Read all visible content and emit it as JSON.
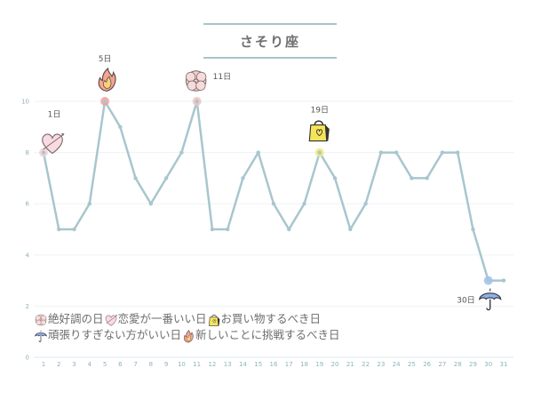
{
  "title": "さそり座",
  "chart_data": {
    "type": "line",
    "x": [
      1,
      2,
      3,
      4,
      5,
      6,
      7,
      8,
      9,
      10,
      11,
      12,
      13,
      14,
      15,
      16,
      17,
      18,
      19,
      20,
      21,
      22,
      23,
      24,
      25,
      26,
      27,
      28,
      29,
      30,
      31
    ],
    "values": [
      8,
      5,
      5,
      6,
      10,
      9,
      7,
      6,
      7,
      8,
      10,
      5,
      5,
      7,
      8,
      6,
      5,
      6,
      8,
      7,
      5,
      6,
      8,
      8,
      7,
      7,
      8,
      8,
      5,
      3,
      3
    ],
    "ylim": [
      0,
      12
    ],
    "yticks": [
      0,
      2,
      4,
      6,
      8,
      10
    ],
    "xticks": [
      "1",
      "2",
      "3",
      "4",
      "5",
      "6",
      "7",
      "8",
      "9",
      "10",
      "11",
      "12",
      "13",
      "14",
      "15",
      "16",
      "17",
      "18",
      "19",
      "20",
      "21",
      "22",
      "23",
      "24",
      "25",
      "26",
      "27",
      "28",
      "29",
      "30",
      "31"
    ],
    "line_color": "#a8c6ce",
    "annotations": [
      {
        "day": 1,
        "label": "1日",
        "icon": "heart-icon",
        "color": "#f4cfd8"
      },
      {
        "day": 5,
        "label": "5日",
        "icon": "flame-icon",
        "color": "#f2a09a"
      },
      {
        "day": 11,
        "label": "11日",
        "icon": "flower-icon",
        "color": "#f0c2c2"
      },
      {
        "day": 19,
        "label": "19日",
        "icon": "shopping-bag-icon",
        "color": "#f3e87a"
      },
      {
        "day": 30,
        "label": "30日",
        "icon": "umbrella-icon",
        "color": "#9fbfee"
      }
    ]
  },
  "legend": {
    "row1": [
      {
        "icon": "flower-icon",
        "text": "絶好調の日"
      },
      {
        "icon": "heart-icon",
        "text": "恋愛が一番いい日"
      },
      {
        "icon": "shopping-bag-icon",
        "text": "お買い物するべき日"
      }
    ],
    "row2": [
      {
        "icon": "umbrella-icon",
        "text": "頑張りすぎない方がいい日"
      },
      {
        "icon": "flame-icon",
        "text": "新しいことに挑戦するべき日"
      }
    ]
  }
}
